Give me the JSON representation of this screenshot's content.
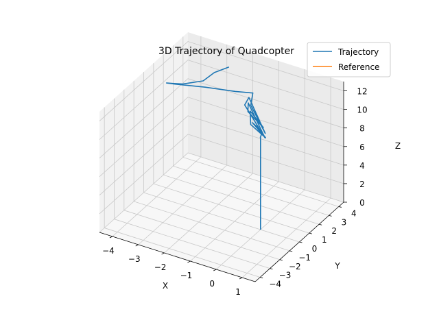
{
  "chart_data": {
    "type": "line",
    "projection": "3d",
    "title": "3D Trajectory of Quadcopter",
    "xlabel": "X",
    "ylabel": "Y",
    "zlabel": "Z",
    "xlim": [
      -4.5,
      1.5
    ],
    "ylim": [
      -4.5,
      4.5
    ],
    "zlim": [
      0,
      13
    ],
    "xticks": [
      -4,
      -3,
      -2,
      -1,
      0,
      1
    ],
    "yticks": [
      -4,
      -3,
      -2,
      -1,
      0,
      1,
      2,
      3,
      4
    ],
    "zticks": [
      0,
      2,
      4,
      6,
      8,
      10,
      12
    ],
    "grid": true,
    "legend_position": "top-right",
    "series": [
      {
        "name": "Trajectory",
        "color": "#1f77b4",
        "points": [
          [
            0,
            0,
            0
          ],
          [
            0,
            0,
            10
          ],
          [
            0.05,
            -0.15,
            10.1
          ],
          [
            -0.05,
            0.25,
            10.05
          ],
          [
            -0.3,
            0.45,
            10.25
          ],
          [
            -0.5,
            0.5,
            10.6
          ],
          [
            -0.2,
            0.2,
            10.7
          ],
          [
            0.5,
            -0.8,
            11.1
          ],
          [
            -0.3,
            -0.2,
            11.25
          ],
          [
            -0.7,
            0.8,
            11.4
          ],
          [
            0.3,
            -0.5,
            11.75
          ],
          [
            -0.6,
            0.3,
            11.9
          ],
          [
            -0.85,
            1.0,
            11.95
          ],
          [
            0.7,
            -1.4,
            11.85
          ],
          [
            -0.8,
            0.5,
            12.25
          ],
          [
            -0.9,
            1.2,
            12.3
          ],
          [
            0.6,
            -1.1,
            11.95
          ],
          [
            -0.6,
            0.6,
            12.3
          ],
          [
            -0.9,
            1.6,
            12.4
          ],
          [
            -1.8,
            2.2,
            11.2
          ],
          [
            -3.0,
            2.3,
            10.5
          ],
          [
            -3.9,
            1.6,
            10.7
          ],
          [
            -4.0,
            1.0,
            11.3
          ],
          [
            -3.3,
            0.8,
            12.0
          ],
          [
            -2.7,
            1.3,
            12.4
          ],
          [
            -2.5,
            1.9,
            12.9
          ],
          [
            -2.2,
            2.6,
            13.1
          ]
        ]
      },
      {
        "name": "Reference",
        "color": "#ff7f0e",
        "points": []
      }
    ]
  }
}
